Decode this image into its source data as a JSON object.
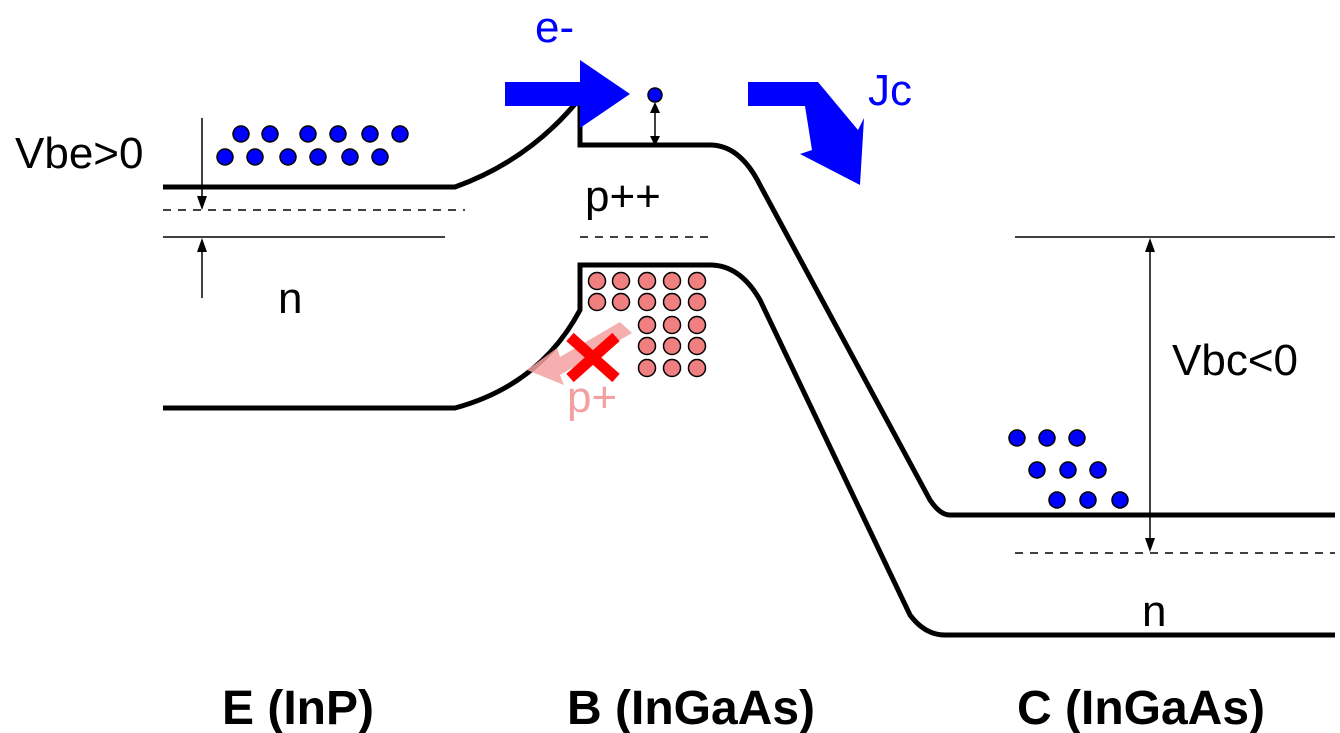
{
  "labels": {
    "vbe": "Vbe>0",
    "emitter_type": "n",
    "electron": "e-",
    "base_doping": "p++",
    "collector_current": "Jc",
    "vbc": "Vbc<0",
    "collector_type": "n",
    "hole": "p+"
  },
  "regions": {
    "emitter": "E (InP)",
    "base": "B (InGaAs)",
    "collector": "C (InGaAs)"
  },
  "colors": {
    "band_line": "#000000",
    "electron": "#0000ff",
    "hole": "#f08080",
    "blocked_mark": "#ff0000",
    "hole_arrow": "#f4a0a0"
  }
}
